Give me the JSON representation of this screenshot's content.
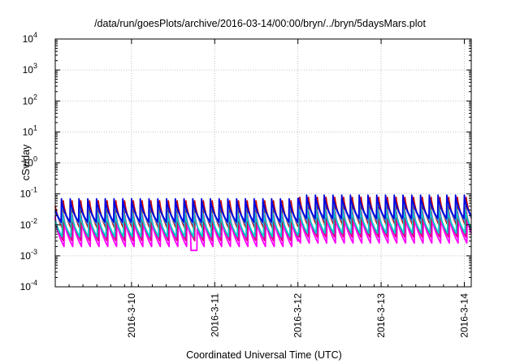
{
  "chart_data": {
    "type": "line",
    "title": "/data/run/goesPlots/archive/2016-03-14/00:00/bryn/../bryn/5daysMars.plot",
    "xlabel": "Coordinated Universal Time (UTC)",
    "ylabel": "cSv/day",
    "yscale": "log",
    "ylim": [
      0.0001,
      10000
    ],
    "xlim": [
      "2016-03-09 02:00",
      "2016-03-14 02:00"
    ],
    "yticks": [
      {
        "value": 0.0001,
        "base": "10",
        "exp": "-4"
      },
      {
        "value": 0.001,
        "base": "10",
        "exp": "-3"
      },
      {
        "value": 0.01,
        "base": "10",
        "exp": "-2"
      },
      {
        "value": 0.1,
        "base": "10",
        "exp": "-1"
      },
      {
        "value": 1,
        "base": "10",
        "exp": "0"
      },
      {
        "value": 10,
        "base": "10",
        "exp": "1"
      },
      {
        "value": 100,
        "base": "10",
        "exp": "2"
      },
      {
        "value": 1000,
        "base": "10",
        "exp": "3"
      },
      {
        "value": 10000,
        "base": "10",
        "exp": "4"
      }
    ],
    "xticks": [
      "2016-3-10",
      "2016-3-11",
      "2016-3-12",
      "2016-3-13",
      "2016-3-14"
    ],
    "grid": true,
    "legend": "none",
    "series_colors": [
      "#ff00ff",
      "#e0008a",
      "#cc0000",
      "#00cccc",
      "#3a8ad6",
      "#0000dd"
    ],
    "series": [
      {
        "color": "#cc0000",
        "peak_cSv_day": 0.09,
        "trough_cSv_day": 0.007
      },
      {
        "color": "#0000dd",
        "peak_cSv_day": 0.08,
        "trough_cSv_day": 0.012
      },
      {
        "color": "#3a8ad6",
        "peak_cSv_day": 0.07,
        "trough_cSv_day": 0.01
      },
      {
        "color": "#00cccc",
        "peak_cSv_day": 0.03,
        "trough_cSv_day": 0.004
      },
      {
        "color": "#e0008a",
        "peak_cSv_day": 0.025,
        "trough_cSv_day": 0.003
      },
      {
        "color": "#ff00ff",
        "peak_cSv_day": 0.02,
        "trough_cSv_day": 0.002
      }
    ],
    "cycles_per_day": 9.5,
    "elevated_after": "2016-03-12 00:00",
    "elevated_factor": 1.3,
    "dip": {
      "time": "2016-03-10 18:00",
      "value_cSv_day": 0.0015
    }
  }
}
